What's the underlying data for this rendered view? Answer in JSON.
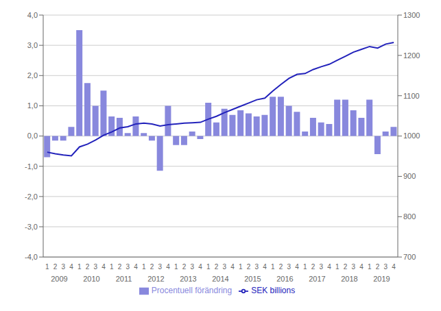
{
  "chart_data": {
    "type": "bar",
    "categories": [
      "1",
      "2",
      "3",
      "4",
      "1",
      "2",
      "3",
      "4",
      "1",
      "2",
      "3",
      "4",
      "1",
      "2",
      "3",
      "4",
      "1",
      "2",
      "3",
      "4",
      "1",
      "2",
      "3",
      "4",
      "1",
      "2",
      "3",
      "4",
      "1",
      "2",
      "3",
      "4",
      "1",
      "2",
      "3",
      "4",
      "1",
      "2",
      "3",
      "4",
      "1",
      "2",
      "3",
      "4"
    ],
    "annotations": [
      "2009",
      "2010",
      "2011",
      "2012",
      "2013",
      "2014",
      "2015",
      "2016",
      "2017",
      "2018",
      "2019"
    ],
    "series": [
      {
        "name": "Procentuell förändring",
        "type": "bar",
        "color": "#8888dd",
        "values": [
          -0.7,
          -0.15,
          -0.15,
          0.3,
          3.5,
          1.75,
          1.0,
          1.5,
          0.65,
          0.6,
          0.1,
          0.65,
          0.1,
          -0.15,
          -1.15,
          1.0,
          -0.3,
          -0.3,
          0.15,
          -0.1,
          1.1,
          0.45,
          0.9,
          0.7,
          0.85,
          0.75,
          0.65,
          0.7,
          1.3,
          1.3,
          1.0,
          0.8,
          0.15,
          0.6,
          0.45,
          0.4,
          1.2,
          1.2,
          0.85,
          0.6,
          1.2,
          -0.6,
          0.15,
          0.3
        ]
      },
      {
        "name": "SEK billions",
        "type": "line",
        "color": "#2222bb",
        "axis": "y2",
        "values": [
          960,
          956,
          953,
          951,
          973,
          980,
          990,
          1002,
          1010,
          1020,
          1023,
          1030,
          1032,
          1030,
          1025,
          1028,
          1030,
          1032,
          1033,
          1034,
          1042,
          1049,
          1058,
          1066,
          1074,
          1082,
          1090,
          1094,
          1112,
          1128,
          1143,
          1153,
          1155,
          1165,
          1172,
          1178,
          1188,
          1198,
          1208,
          1215,
          1222,
          1218,
          1228,
          1232
        ]
      }
    ],
    "ylim": [
      -4.0,
      4.0
    ],
    "yticks": [
      {
        "value": -4.0,
        "label": "-4,0"
      },
      {
        "value": -3.0,
        "label": "-3,0"
      },
      {
        "value": -2.0,
        "label": "-2,0"
      },
      {
        "value": -1.0,
        "label": "-1,0"
      },
      {
        "value": 0.0,
        "label": "0,0"
      },
      {
        "value": 1.0,
        "label": "1,0"
      },
      {
        "value": 2.0,
        "label": "2,0"
      },
      {
        "value": 3.0,
        "label": "3,0"
      },
      {
        "value": 4.0,
        "label": "4,0"
      }
    ],
    "y2lim": [
      700,
      1300
    ],
    "y2ticks": [
      700,
      800,
      900,
      1000,
      1100,
      1200,
      1300
    ],
    "grid": true,
    "legend": "bottom"
  }
}
